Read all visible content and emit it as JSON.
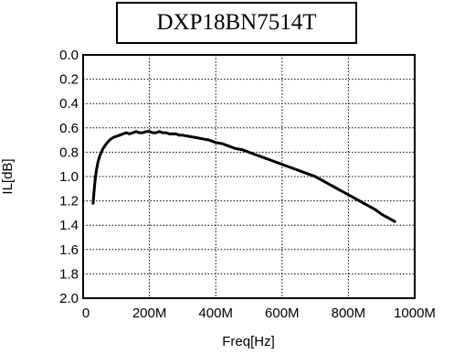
{
  "chart_data": {
    "type": "line",
    "title": "DXP18BN7514T",
    "xlabel": "Freq[Hz]",
    "ylabel": "IL[dB]",
    "xlim": [
      0,
      1000000000
    ],
    "ylim": [
      0.0,
      2.0
    ],
    "y_inverted": true,
    "grid": true,
    "x_ticks": [
      {
        "value": 0,
        "label": "0"
      },
      {
        "value": 200000000,
        "label": "200M"
      },
      {
        "value": 400000000,
        "label": "400M"
      },
      {
        "value": 600000000,
        "label": "600M"
      },
      {
        "value": 800000000,
        "label": "800M"
      },
      {
        "value": 1000000000,
        "label": "1000M"
      }
    ],
    "y_ticks": [
      {
        "value": 0.0,
        "label": "0.0"
      },
      {
        "value": 0.2,
        "label": "0.2"
      },
      {
        "value": 0.4,
        "label": "0.4"
      },
      {
        "value": 0.6,
        "label": "0.6"
      },
      {
        "value": 0.8,
        "label": "0.8"
      },
      {
        "value": 1.0,
        "label": "1.0"
      },
      {
        "value": 1.2,
        "label": "1.2"
      },
      {
        "value": 1.4,
        "label": "1.4"
      },
      {
        "value": 1.6,
        "label": "1.6"
      },
      {
        "value": 1.8,
        "label": "1.8"
      },
      {
        "value": 2.0,
        "label": "2.0"
      }
    ],
    "series": [
      {
        "x": [
          30000000,
          33000000,
          36000000,
          40000000,
          45000000,
          50000000,
          55000000,
          60000000,
          70000000,
          80000000,
          90000000,
          100000000,
          110000000,
          120000000,
          130000000,
          140000000,
          150000000,
          160000000,
          170000000,
          180000000,
          190000000,
          200000000,
          210000000,
          220000000,
          230000000,
          240000000,
          250000000,
          260000000,
          270000000,
          280000000,
          290000000,
          300000000,
          320000000,
          340000000,
          360000000,
          380000000,
          400000000,
          420000000,
          440000000,
          460000000,
          480000000,
          500000000,
          520000000,
          540000000,
          560000000,
          580000000,
          600000000,
          620000000,
          640000000,
          660000000,
          680000000,
          700000000,
          720000000,
          740000000,
          760000000,
          780000000,
          800000000,
          820000000,
          840000000,
          860000000,
          880000000,
          900000000,
          920000000,
          940000000
        ],
        "y": [
          1.22,
          1.12,
          1.03,
          0.95,
          0.88,
          0.83,
          0.8,
          0.77,
          0.73,
          0.7,
          0.68,
          0.67,
          0.66,
          0.65,
          0.64,
          0.65,
          0.64,
          0.63,
          0.64,
          0.64,
          0.63,
          0.63,
          0.64,
          0.64,
          0.63,
          0.64,
          0.64,
          0.65,
          0.65,
          0.65,
          0.66,
          0.66,
          0.67,
          0.68,
          0.69,
          0.7,
          0.72,
          0.73,
          0.75,
          0.77,
          0.78,
          0.8,
          0.82,
          0.84,
          0.86,
          0.88,
          0.9,
          0.92,
          0.94,
          0.96,
          0.98,
          1.0,
          1.03,
          1.06,
          1.09,
          1.12,
          1.15,
          1.18,
          1.21,
          1.24,
          1.27,
          1.31,
          1.34,
          1.37
        ]
      }
    ]
  }
}
